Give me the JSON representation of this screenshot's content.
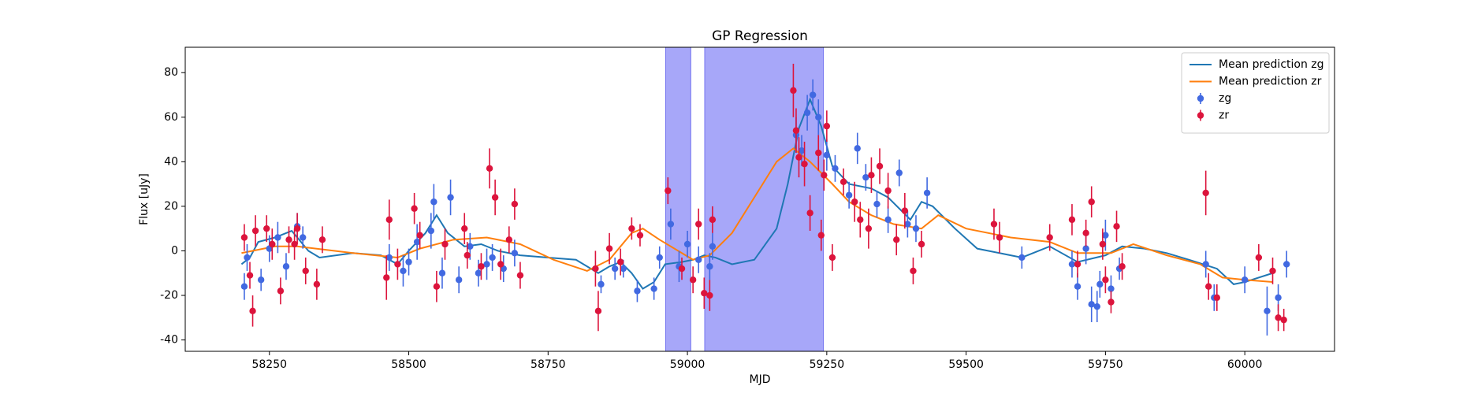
{
  "chart_data": {
    "type": "errorbar",
    "title": "GP Regression",
    "x_label": "MJD",
    "y_label": "Flux [uJy]",
    "xlim": [
      58099,
      60161
    ],
    "ylim": [
      -45.1,
      91.4
    ],
    "xticks": [
      58250,
      58500,
      58750,
      59000,
      59250,
      59500,
      59750,
      60000
    ],
    "yticks": [
      -40,
      -20,
      0,
      20,
      40,
      60,
      80
    ],
    "legend": "upper right",
    "shaded_regions": [
      [
        58961,
        59006
      ],
      [
        59031,
        59244
      ]
    ],
    "shade_color": "#a7a7f9",
    "series": [
      {
        "name": "Mean prediction zg",
        "type": "line",
        "color": "#1f77b4",
        "x": [
          58200,
          58215,
          58230,
          58260,
          58290,
          58320,
          58340,
          58400,
          58450,
          58480,
          58500,
          58530,
          58550,
          58570,
          58600,
          58630,
          58660,
          58700,
          58750,
          58800,
          58840,
          58860,
          58880,
          58900,
          58920,
          58940,
          58960,
          58990,
          59010,
          59030,
          59050,
          59080,
          59120,
          59160,
          59180,
          59200,
          59220,
          59240,
          59260,
          59290,
          59330,
          59360,
          59400,
          59420,
          59440,
          59480,
          59520,
          59600,
          59650,
          59700,
          59750,
          59780,
          59820,
          59860,
          59900,
          59950,
          59980,
          60000,
          60050
        ],
        "values": [
          -6,
          -3,
          4,
          6,
          9,
          0,
          -3,
          -1,
          -2,
          -6,
          0,
          8,
          16,
          8,
          2,
          3,
          0,
          -2,
          -3,
          -4,
          -10,
          -7,
          -5,
          -10,
          -17,
          -14,
          -6,
          -5,
          -4,
          -2,
          -3,
          -6,
          -4,
          10,
          30,
          55,
          68,
          56,
          38,
          30,
          28,
          24,
          14,
          22,
          20,
          10,
          1,
          -3,
          2,
          -5,
          -2,
          2,
          1,
          -1,
          -4,
          -8,
          -15,
          -14,
          -10
        ]
      },
      {
        "name": "Mean prediction zr",
        "type": "line",
        "color": "#ff7f0e",
        "x": [
          58200,
          58260,
          58300,
          58400,
          58480,
          58520,
          58580,
          58640,
          58700,
          58760,
          58820,
          58860,
          58900,
          58920,
          58950,
          58990,
          59010,
          59040,
          59080,
          59120,
          59160,
          59190,
          59220,
          59260,
          59290,
          59330,
          59370,
          59420,
          59450,
          59500,
          59580,
          59650,
          59700,
          59760,
          59800,
          59860,
          59920,
          59960,
          60000,
          60050
        ],
        "values": [
          -1,
          2,
          2,
          -1,
          -3,
          1,
          5,
          6,
          3,
          -4,
          -9,
          -4,
          8,
          10,
          5,
          -1,
          -4,
          -2,
          8,
          24,
          40,
          46,
          40,
          30,
          22,
          16,
          12,
          10,
          16,
          10,
          6,
          4,
          -1,
          -1,
          3,
          -2,
          -6,
          -12,
          -13,
          -14
        ]
      },
      {
        "name": "zg",
        "type": "errorbar",
        "color": "#4169e1",
        "x": [
          58205,
          58210,
          58235,
          58250,
          58265,
          58280,
          58300,
          58310,
          58465,
          58490,
          58500,
          58515,
          58540,
          58545,
          58560,
          58575,
          58590,
          58610,
          58625,
          58640,
          58650,
          58670,
          58690,
          58845,
          58870,
          58885,
          58910,
          58940,
          58950,
          58970,
          58985,
          59000,
          59020,
          59040,
          59045,
          59195,
          59205,
          59215,
          59225,
          59235,
          59250,
          59265,
          59290,
          59305,
          59320,
          59340,
          59360,
          59380,
          59395,
          59410,
          59430,
          59600,
          59690,
          59700,
          59715,
          59725,
          59735,
          59740,
          59750,
          59760,
          59775,
          59930,
          59945,
          60000,
          60040,
          60060,
          60075
        ],
        "values": [
          -16,
          -3,
          -13,
          1,
          6,
          -7,
          11,
          6,
          -3,
          -9,
          -5,
          4,
          9,
          22,
          -10,
          24,
          -13,
          2,
          -10,
          -6,
          -3,
          -8,
          -1,
          -15,
          -8,
          -8,
          -18,
          -17,
          -3,
          12,
          -7,
          3,
          -4,
          -7,
          2,
          52,
          45,
          62,
          70,
          60,
          43,
          37,
          25,
          46,
          33,
          21,
          14,
          35,
          12,
          10,
          26,
          -3,
          -6,
          -16,
          1,
          -24,
          -25,
          -15,
          7,
          -17,
          -8,
          -6,
          -21,
          -13,
          -27,
          -21,
          -6
        ],
        "errors": [
          6,
          6,
          5,
          6,
          7,
          6,
          6,
          5,
          6,
          7,
          6,
          8,
          8,
          8,
          7,
          8,
          6,
          6,
          6,
          7,
          6,
          6,
          6,
          4,
          5,
          4,
          5,
          5,
          5,
          7,
          7,
          6,
          6,
          6,
          6,
          8,
          7,
          8,
          7,
          8,
          7,
          6,
          6,
          7,
          6,
          6,
          6,
          6,
          6,
          6,
          7,
          5,
          6,
          6,
          7,
          8,
          7,
          6,
          7,
          6,
          5,
          6,
          6,
          6,
          11,
          6,
          6
        ]
      },
      {
        "name": "zr",
        "type": "errorbar",
        "color": "#dc143c",
        "x": [
          58205,
          58215,
          58220,
          58225,
          58245,
          58255,
          58270,
          58285,
          58295,
          58300,
          58315,
          58335,
          58345,
          58460,
          58465,
          58480,
          58510,
          58520,
          58550,
          58565,
          58600,
          58605,
          58630,
          58645,
          58655,
          58665,
          58680,
          58690,
          58700,
          58835,
          58840,
          58860,
          58880,
          58900,
          58915,
          58965,
          58990,
          59010,
          59020,
          59030,
          59040,
          59045,
          59190,
          59195,
          59200,
          59210,
          59220,
          59235,
          59240,
          59245,
          59250,
          59260,
          59280,
          59300,
          59310,
          59325,
          59330,
          59345,
          59360,
          59375,
          59390,
          59405,
          59420,
          59550,
          59560,
          59650,
          59690,
          59700,
          59715,
          59725,
          59745,
          59750,
          59760,
          59770,
          59780,
          59930,
          59935,
          59950,
          60025,
          60050,
          60060,
          60070
        ],
        "values": [
          6,
          -11,
          -27,
          9,
          10,
          3,
          -18,
          5,
          3,
          10,
          -9,
          -15,
          5,
          -12,
          14,
          -6,
          19,
          7,
          -16,
          3,
          10,
          -2,
          -7,
          37,
          24,
          -6,
          5,
          21,
          -11,
          -8,
          -27,
          1,
          -5,
          10,
          7,
          27,
          -8,
          -13,
          12,
          -19,
          -20,
          14,
          72,
          54,
          42,
          39,
          17,
          44,
          7,
          34,
          56,
          -3,
          31,
          22,
          14,
          10,
          34,
          38,
          27,
          5,
          18,
          -9,
          3,
          12,
          6,
          6,
          14,
          -6,
          8,
          22,
          3,
          -13,
          -23,
          11,
          -7,
          26,
          -16,
          -21,
          -3,
          -9,
          -30,
          -31
        ],
        "errors": [
          6,
          6,
          7,
          7,
          6,
          7,
          6,
          6,
          7,
          7,
          6,
          7,
          6,
          10,
          9,
          7,
          7,
          6,
          7,
          7,
          7,
          6,
          6,
          9,
          8,
          7,
          6,
          7,
          6,
          8,
          9,
          7,
          6,
          5,
          5,
          6,
          5,
          6,
          7,
          7,
          7,
          6,
          12,
          10,
          9,
          10,
          8,
          8,
          7,
          7,
          7,
          6,
          6,
          9,
          8,
          9,
          8,
          8,
          8,
          7,
          8,
          6,
          6,
          7,
          7,
          6,
          7,
          6,
          6,
          7,
          7,
          6,
          5,
          7,
          6,
          10,
          6,
          6,
          6,
          6,
          6,
          5
        ]
      }
    ]
  }
}
